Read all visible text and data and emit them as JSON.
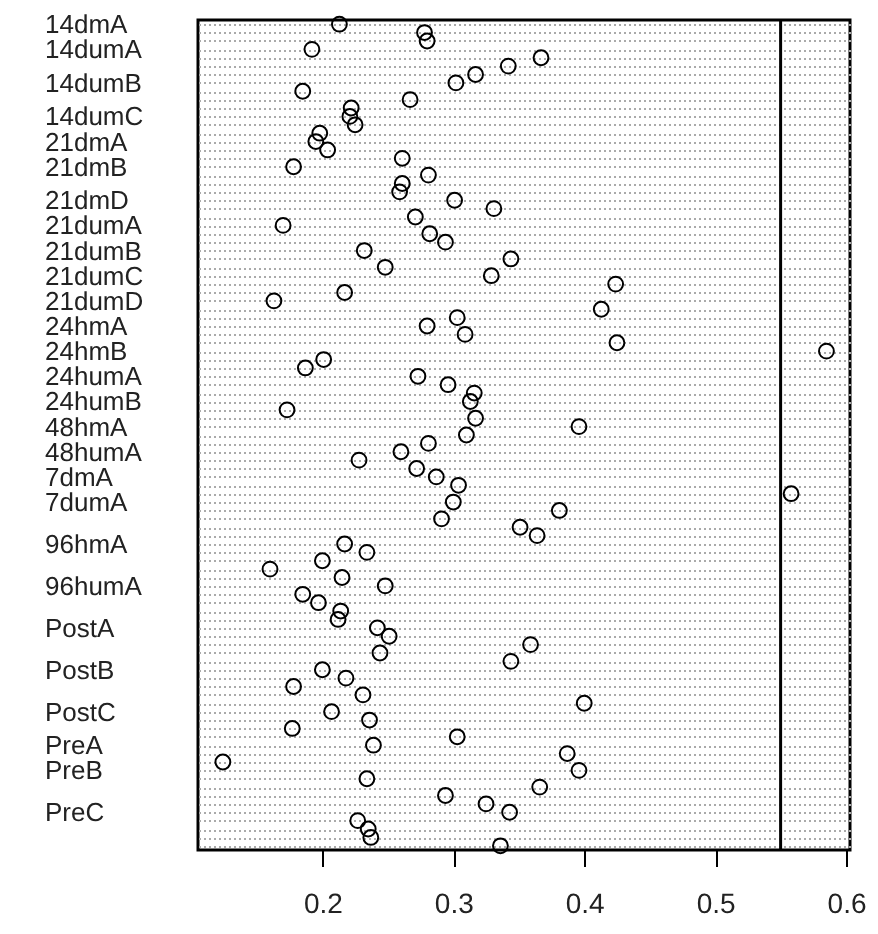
{
  "chart_data": {
    "type": "scatter",
    "orientation": "horizontal",
    "marker": "circle",
    "grid": "y",
    "color": "#000000",
    "categories": [
      "14dmA",
      null,
      null,
      "14dumA",
      null,
      null,
      null,
      "14dumB",
      null,
      null,
      null,
      "14dumC",
      null,
      null,
      "21dmA",
      null,
      null,
      "21dmB",
      null,
      null,
      null,
      "21dmD",
      null,
      null,
      "21dumA",
      null,
      null,
      "21dumB",
      null,
      null,
      "21dumC",
      null,
      null,
      "21dumD",
      null,
      null,
      "24hmA",
      null,
      null,
      "24hmB",
      null,
      null,
      "24humA",
      null,
      null,
      "24humB",
      null,
      null,
      "48hmA",
      null,
      null,
      "48humA",
      null,
      null,
      "7dmA",
      null,
      null,
      "7dumA",
      null,
      null,
      null,
      null,
      "96hmA",
      null,
      null,
      null,
      null,
      "96humA",
      null,
      null,
      null,
      null,
      "PostA",
      null,
      null,
      null,
      null,
      "PostB",
      null,
      null,
      null,
      null,
      "PostC",
      null,
      null,
      null,
      "PreA",
      null,
      null,
      "PreB",
      null,
      null,
      null,
      null,
      "PreC",
      null,
      null,
      null,
      null
    ],
    "values": [
      0.213,
      0.278,
      0.28,
      0.192,
      0.367,
      0.342,
      0.317,
      0.302,
      0.185,
      0.267,
      0.222,
      0.221,
      0.225,
      0.198,
      0.195,
      0.204,
      0.261,
      0.178,
      0.281,
      0.261,
      0.259,
      0.301,
      0.331,
      0.271,
      0.17,
      0.282,
      0.294,
      0.232,
      0.344,
      0.248,
      0.329,
      0.424,
      0.217,
      0.163,
      0.413,
      0.303,
      0.28,
      0.309,
      0.425,
      0.585,
      0.201,
      0.187,
      0.273,
      0.296,
      0.316,
      0.313,
      0.173,
      0.317,
      0.396,
      0.31,
      0.281,
      0.26,
      0.228,
      0.272,
      0.287,
      0.304,
      0.558,
      0.3,
      0.381,
      0.291,
      0.351,
      0.364,
      0.217,
      0.234,
      0.2,
      0.16,
      0.215,
      0.248,
      0.185,
      0.197,
      0.214,
      0.212,
      0.242,
      0.251,
      0.359,
      0.244,
      0.344,
      0.2,
      0.218,
      0.178,
      0.231,
      0.4,
      0.207,
      0.236,
      0.177,
      0.303,
      0.239,
      0.387,
      0.124,
      0.396,
      0.234,
      0.366,
      0.294,
      0.325,
      0.343,
      0.227,
      0.235,
      0.237,
      0.336
    ],
    "xlim": [
      0.105,
      0.603
    ],
    "xticks": [
      0.2,
      0.3,
      0.4,
      0.5,
      0.6
    ],
    "ref_lines": [
      {
        "axis": "x",
        "value": 0.55,
        "color": "#000000"
      }
    ]
  }
}
